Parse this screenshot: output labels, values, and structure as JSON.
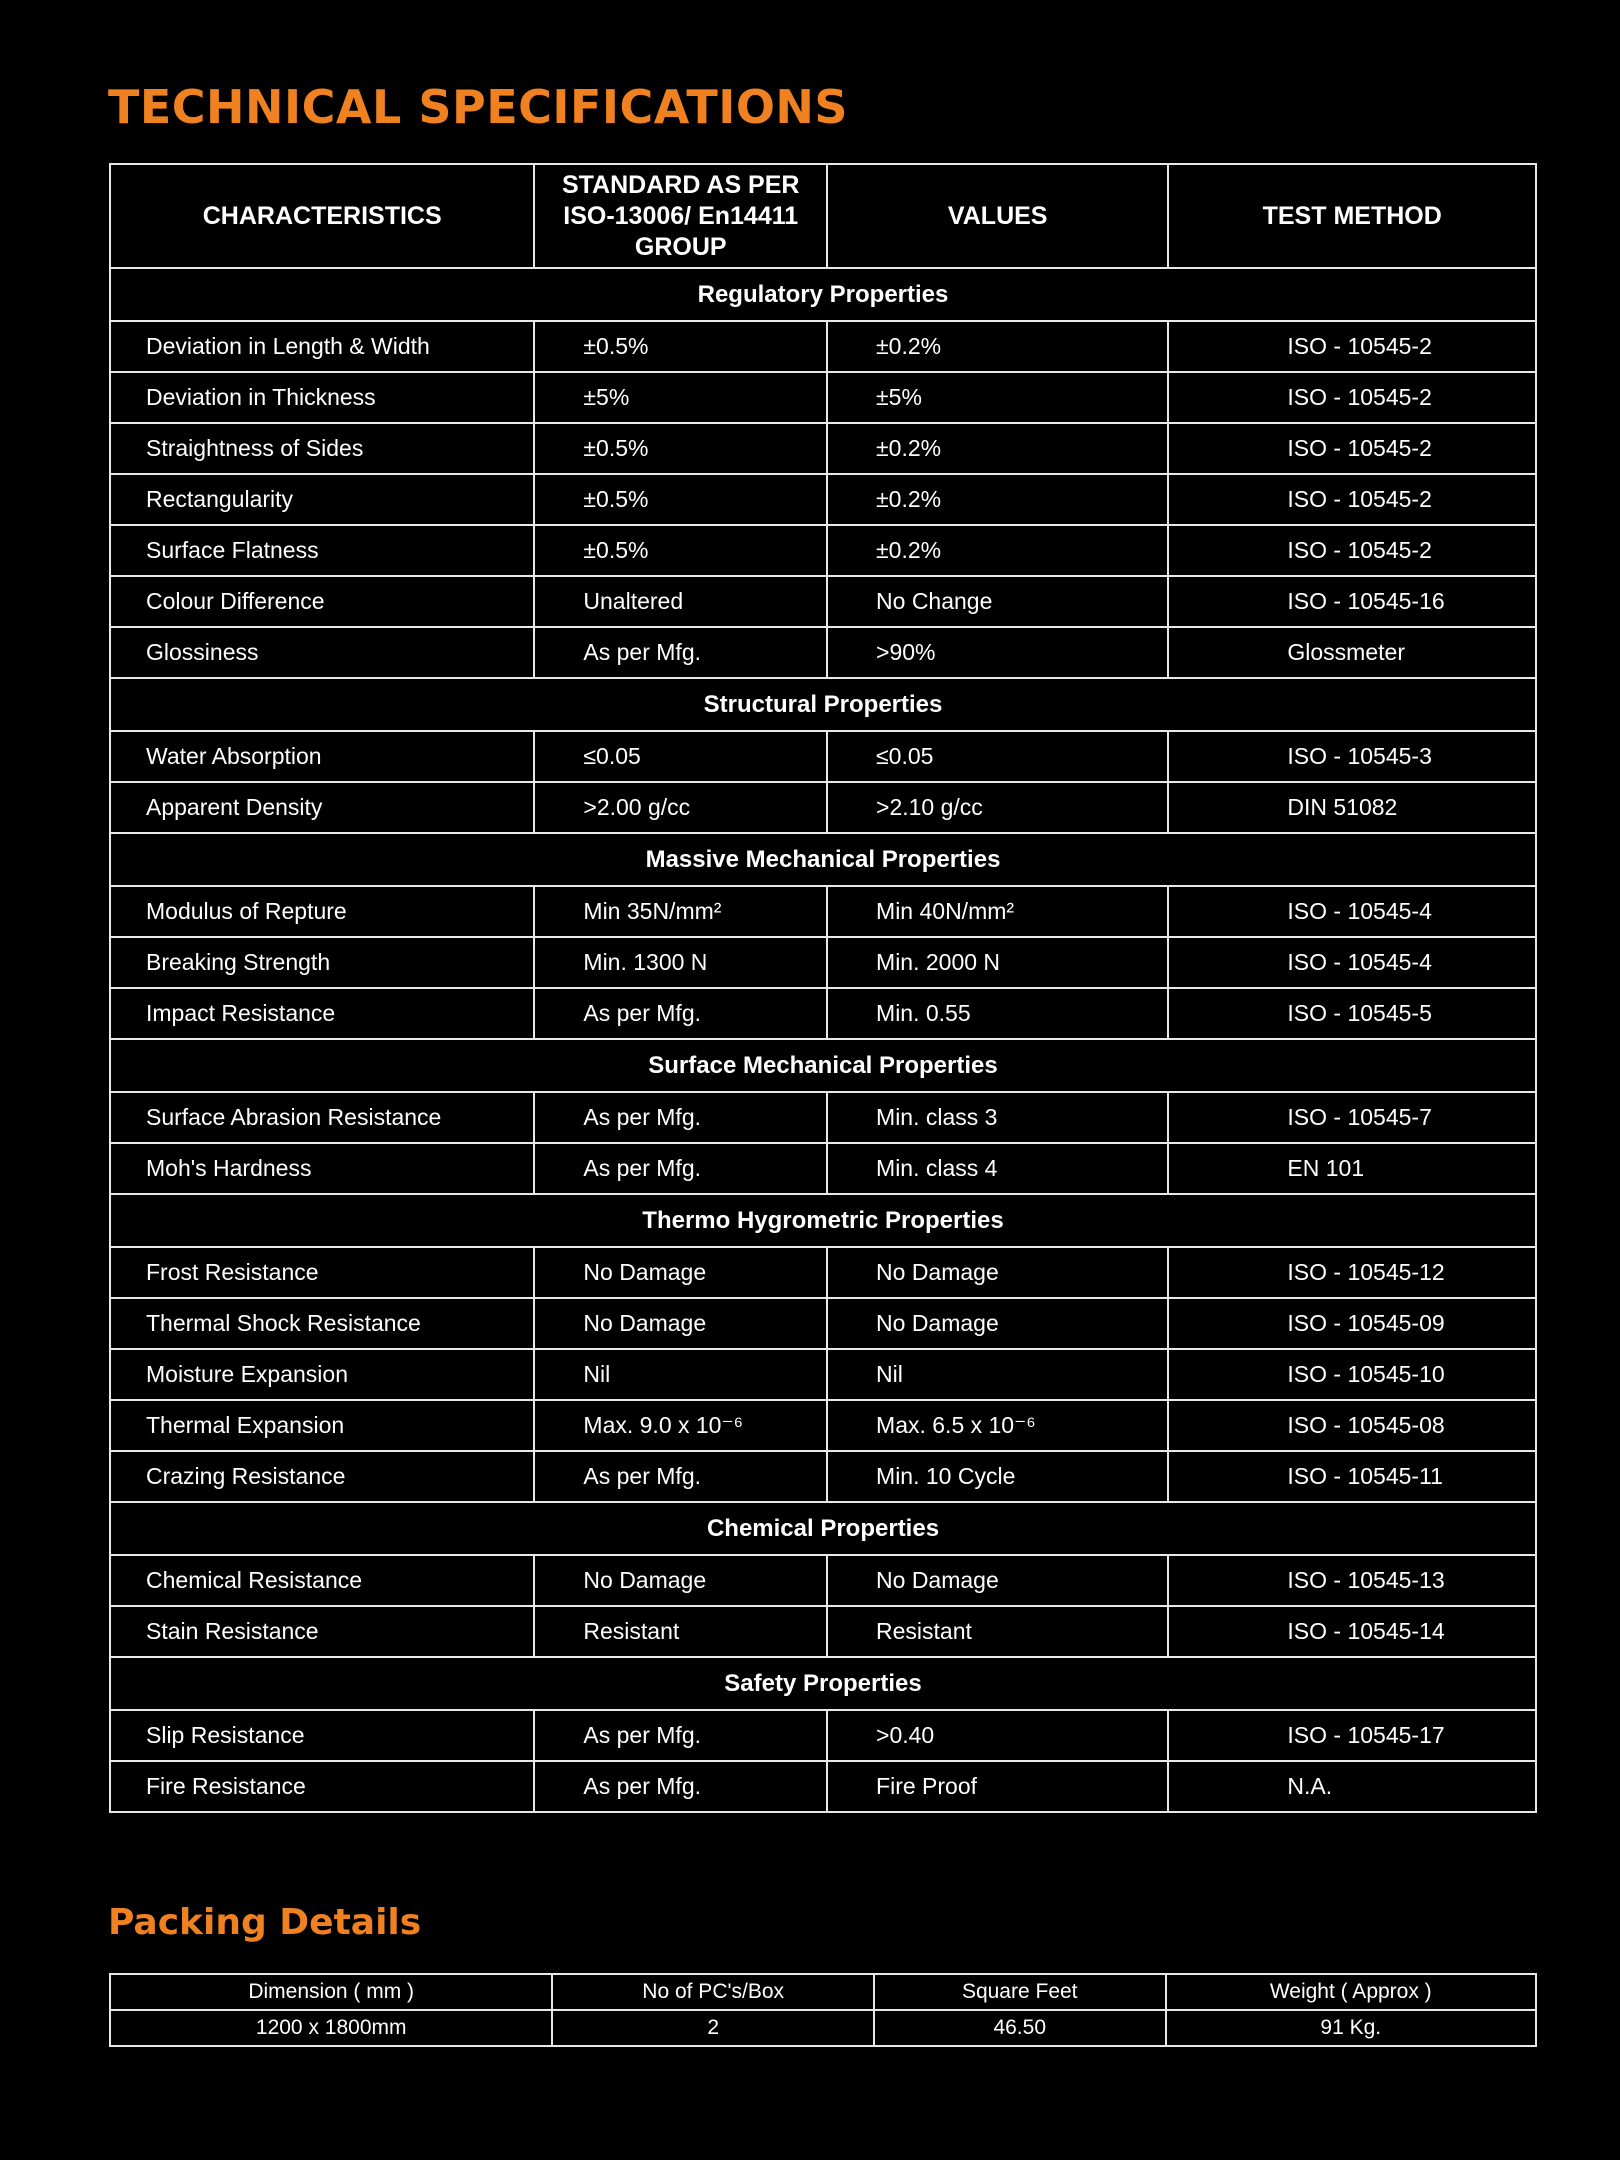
{
  "title": "TECHNICAL SPECIFICATIONS",
  "spec_table": {
    "headers": [
      "CHARACTERISTICS",
      "STANDARD AS PER ISO-13006/ En14411 GROUP",
      "VALUES",
      "TEST METHOD"
    ],
    "sections": [
      {
        "name": "Regulatory Properties",
        "rows": [
          [
            "Deviation in Length & Width",
            "±0.5%",
            "±0.2%",
            "ISO - 10545-2"
          ],
          [
            "Deviation in Thickness",
            "±5%",
            "±5%",
            "ISO - 10545-2"
          ],
          [
            "Straightness of Sides",
            "±0.5%",
            "±0.2%",
            "ISO - 10545-2"
          ],
          [
            "Rectangularity",
            "±0.5%",
            "±0.2%",
            "ISO - 10545-2"
          ],
          [
            "Surface Flatness",
            "±0.5%",
            "±0.2%",
            "ISO - 10545-2"
          ],
          [
            "Colour Difference",
            "Unaltered",
            "No Change",
            "ISO - 10545-16"
          ],
          [
            "Glossiness",
            "As per Mfg.",
            ">90%",
            "Glossmeter"
          ]
        ]
      },
      {
        "name": "Structural Properties",
        "rows": [
          [
            "Water Absorption",
            "≤0.05",
            "≤0.05",
            "ISO - 10545-3"
          ],
          [
            "Apparent Density",
            ">2.00 g/cc",
            ">2.10 g/cc",
            "DIN 51082"
          ]
        ]
      },
      {
        "name": "Massive Mechanical Properties",
        "rows": [
          [
            "Modulus of Repture",
            "Min 35N/mm²",
            "Min 40N/mm²",
            "ISO - 10545-4"
          ],
          [
            "Breaking Strength",
            "Min. 1300 N",
            "Min. 2000 N",
            "ISO - 10545-4"
          ],
          [
            "Impact Resistance",
            "As per Mfg.",
            "Min. 0.55",
            "ISO - 10545-5"
          ]
        ]
      },
      {
        "name": "Surface Mechanical Properties",
        "rows": [
          [
            "Surface Abrasion Resistance",
            "As per Mfg.",
            "Min. class 3",
            "ISO - 10545-7"
          ],
          [
            "Moh's Hardness",
            "As per Mfg.",
            "Min. class 4",
            "EN 101"
          ]
        ]
      },
      {
        "name": "Thermo Hygrometric Properties",
        "rows": [
          [
            "Frost Resistance",
            "No Damage",
            "No Damage",
            "ISO - 10545-12"
          ],
          [
            "Thermal Shock Resistance",
            "No Damage",
            "No Damage",
            "ISO - 10545-09"
          ],
          [
            "Moisture Expansion",
            "Nil",
            "Nil",
            "ISO - 10545-10"
          ],
          [
            "Thermal Expansion",
            "Max. 9.0 x 10⁻⁶",
            "Max. 6.5 x 10⁻⁶",
            "ISO - 10545-08"
          ],
          [
            "Crazing Resistance",
            "As per Mfg.",
            "Min. 10 Cycle",
            "ISO - 10545-11"
          ]
        ]
      },
      {
        "name": "Chemical Properties",
        "rows": [
          [
            "Chemical Resistance",
            "No Damage",
            "No Damage",
            "ISO - 10545-13"
          ],
          [
            "Stain Resistance",
            "Resistant",
            "Resistant",
            "ISO - 10545-14"
          ]
        ]
      },
      {
        "name": "Safety Properties",
        "rows": [
          [
            "Slip Resistance",
            "As per Mfg.",
            ">0.40",
            "ISO - 10545-17"
          ],
          [
            "Fire Resistance",
            "As per Mfg.",
            "Fire Proof",
            "N.A."
          ]
        ]
      }
    ]
  },
  "packing": {
    "title": "Packing Details",
    "headers": [
      "Dimension ( mm )",
      "No of PC's/Box",
      "Square Feet",
      "Weight ( Approx )"
    ],
    "row": [
      "1200 x 1800mm",
      "2",
      "46.50",
      "91 Kg."
    ]
  },
  "colors": {
    "accent": "#f08121",
    "background": "#000000",
    "border": "#e8e8e8"
  }
}
